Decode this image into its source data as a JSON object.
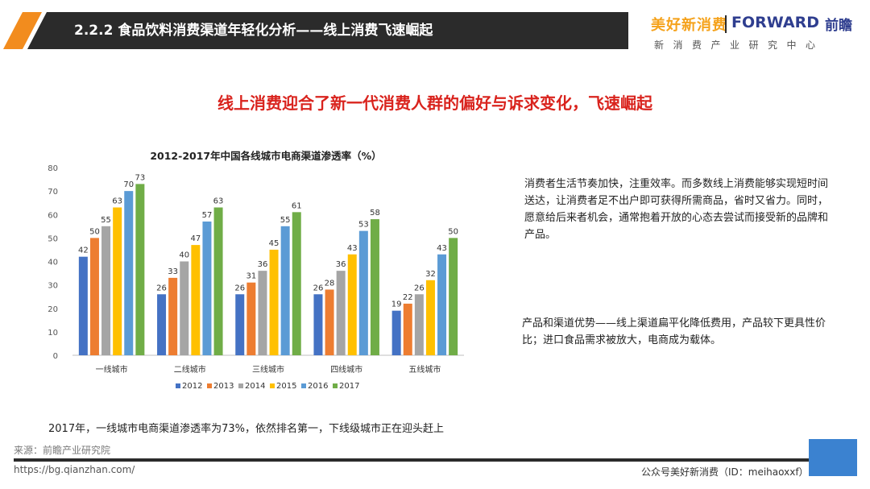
{
  "header": {
    "title": "2.2.2 食品饮料消费渠道年轻化分析——线上消费飞速崛起"
  },
  "brand": {
    "mei": "美好新消费",
    "forward": "FORWARD",
    "qianzhan": "前瞻",
    "sub": "新消费产业研究中心"
  },
  "subtitle": "线上消费迎合了新一代消费人群的偏好与诉求变化，飞速崛起",
  "chart_data": {
    "type": "bar",
    "title": "2012-2017年中国各线城市电商渠道渗透率（%）",
    "categories": [
      "一线城市",
      "二线城市",
      "三线城市",
      "四线城市",
      "五线城市"
    ],
    "series": [
      {
        "name": "2012",
        "color": "#4472c4",
        "values": [
          42,
          26,
          26,
          26,
          19
        ]
      },
      {
        "name": "2013",
        "color": "#ed7d31",
        "values": [
          50,
          33,
          31,
          28,
          22
        ]
      },
      {
        "name": "2014",
        "color": "#a5a5a5",
        "values": [
          55,
          40,
          36,
          36,
          26
        ]
      },
      {
        "name": "2015",
        "color": "#ffc000",
        "values": [
          63,
          47,
          45,
          43,
          32
        ]
      },
      {
        "name": "2016",
        "color": "#5b9bd5",
        "values": [
          70,
          57,
          55,
          53,
          43
        ]
      },
      {
        "name": "2017",
        "color": "#70ad47",
        "values": [
          73,
          63,
          61,
          58,
          50
        ]
      }
    ],
    "ylim": [
      0,
      80
    ],
    "yticks": [
      0,
      10,
      20,
      30,
      40,
      50,
      60,
      70,
      80
    ],
    "grid": false,
    "legend": "bottom"
  },
  "desc1": "消费者生活节奏加快，注重效率。而多数线上消费能够实现短时间送达，让消费者足不出户即可获得所需商品，省时又省力。同时，愿意给后来者机会，通常抱着开放的心态去尝试而接受新的品牌和产品。",
  "desc2": "产品和渠道优势——线上渠道扁平化降低费用，产品较下更具性价比；进口食品需求被放大，电商成为载体。",
  "note": "2017年，一线城市电商渠道渗透率为73%，依然排名第一，下线级城市正在迎头赶上",
  "source": "来源：前瞻产业研究院",
  "url": "https://bg.qianzhan.com/",
  "wechat": "公众号美好新消费（ID：meihaoxxf）",
  "colors": {
    "header_bg": "#2b2b2b",
    "accent_orange": "#f28c1e",
    "subtitle_red": "#d9231d",
    "brand_blue": "#2f3e8f",
    "corner_blue": "#3b82d0"
  }
}
